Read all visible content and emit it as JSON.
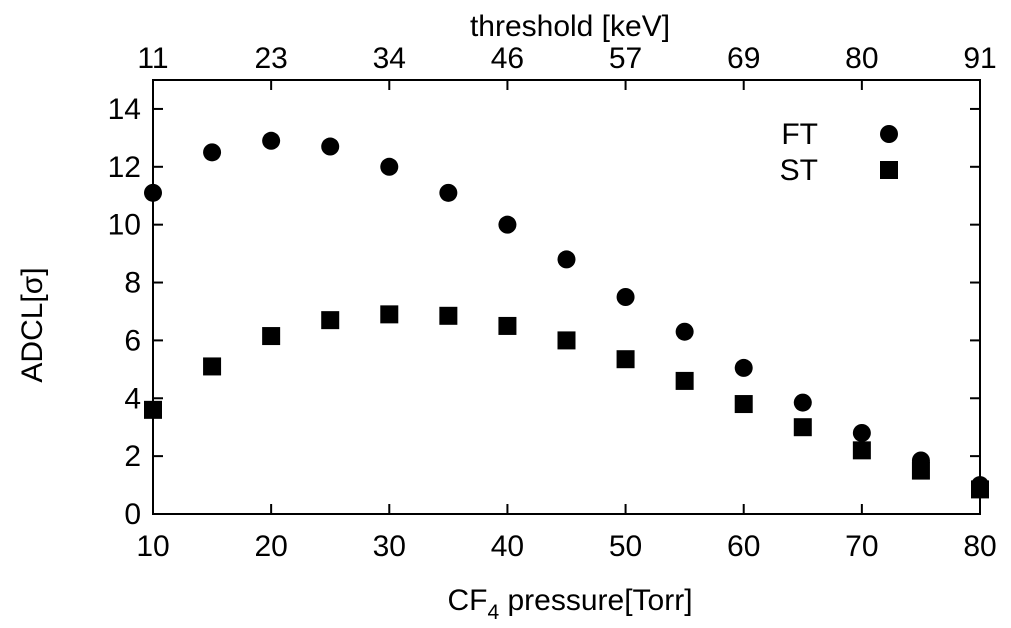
{
  "chart_data": {
    "type": "scatter",
    "xlabel_main": "CF",
    "xlabel_sub": "4",
    "xlabel_rest": " pressure[Torr]",
    "ylabel": "ADCL[σ]",
    "top_label": "threshold [keV]",
    "xlim": [
      10,
      80
    ],
    "ylim": [
      0,
      15
    ],
    "x_ticks": [
      "10",
      "20",
      "30",
      "40",
      "50",
      "60",
      "70",
      "80"
    ],
    "y_ticks": [
      "0",
      "2",
      "4",
      "6",
      "8",
      "10",
      "12",
      "14"
    ],
    "top_ticks": [
      "11",
      "23",
      "34",
      "46",
      "57",
      "69",
      "80",
      "91"
    ],
    "x": [
      10,
      15,
      20,
      25,
      30,
      35,
      40,
      45,
      50,
      55,
      60,
      65,
      70,
      75,
      80
    ],
    "series": [
      {
        "name": "FT",
        "marker": "circle",
        "values": [
          11.1,
          12.5,
          12.9,
          12.7,
          12.0,
          11.1,
          10.0,
          8.8,
          7.5,
          6.3,
          5.05,
          3.85,
          2.8,
          1.85,
          1.0
        ]
      },
      {
        "name": "ST",
        "marker": "square",
        "values": [
          3.6,
          5.1,
          6.15,
          6.7,
          6.9,
          6.85,
          6.5,
          6.0,
          5.35,
          4.6,
          3.8,
          3.0,
          2.2,
          1.5,
          0.85
        ]
      }
    ],
    "legend_position": "top-right",
    "grid": false,
    "color": "#000000"
  }
}
